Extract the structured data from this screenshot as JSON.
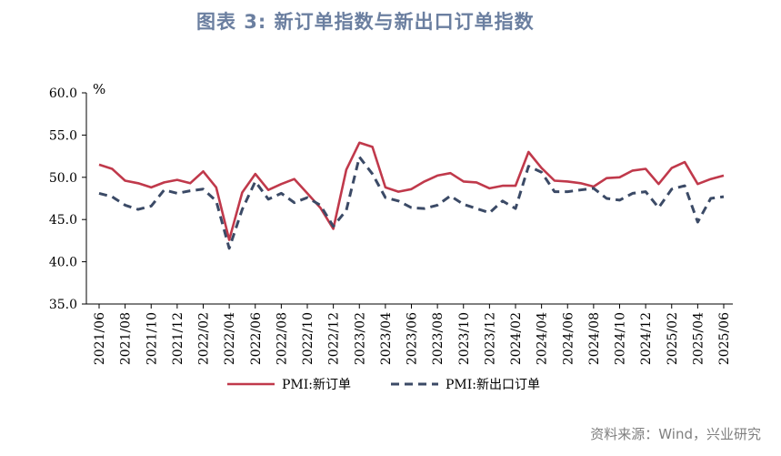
{
  "title": "图表  3:  新订单指数与新出口订单指数",
  "source": "资料来源：Wind，兴业研究",
  "chart_data": {
    "type": "line",
    "unit": "%",
    "ylim": [
      35.0,
      60.0
    ],
    "yticks": [
      "35.0",
      "40.0",
      "45.0",
      "50.0",
      "55.0",
      "60.0"
    ],
    "ytick_values": [
      35,
      40,
      45,
      50,
      55,
      60
    ],
    "x_labels": [
      "2021/06",
      "2021/08",
      "2021/10",
      "2021/12",
      "2022/02",
      "2022/04",
      "2022/06",
      "2022/08",
      "2022/10",
      "2022/12",
      "2023/02",
      "2023/04",
      "2023/06",
      "2023/08",
      "2023/10",
      "2023/12",
      "2024/02",
      "2024/04",
      "2024/06",
      "2024/08",
      "2024/10",
      "2024/12",
      "2025/02",
      "2025/04",
      "2025/06"
    ],
    "x": [
      "2021/06",
      "2021/07",
      "2021/08",
      "2021/09",
      "2021/10",
      "2021/11",
      "2021/12",
      "2022/01",
      "2022/02",
      "2022/03",
      "2022/04",
      "2022/05",
      "2022/06",
      "2022/07",
      "2022/08",
      "2022/09",
      "2022/10",
      "2022/11",
      "2022/12",
      "2023/01",
      "2023/02",
      "2023/03",
      "2023/04",
      "2023/05",
      "2023/06",
      "2023/07",
      "2023/08",
      "2023/09",
      "2023/10",
      "2023/11",
      "2023/12",
      "2024/01",
      "2024/02",
      "2024/03",
      "2024/04",
      "2024/05",
      "2024/06",
      "2024/07",
      "2024/08",
      "2024/09",
      "2024/10",
      "2024/11",
      "2024/12",
      "2025/01",
      "2025/02",
      "2025/03",
      "2025/04",
      "2025/05",
      "2025/06"
    ],
    "series": [
      {
        "name": "PMI:新订单",
        "color": "#c0394b",
        "dash": "solid",
        "values": [
          51.5,
          51.0,
          49.6,
          49.3,
          48.8,
          49.4,
          49.7,
          49.3,
          50.7,
          48.8,
          42.6,
          48.2,
          50.4,
          48.5,
          49.2,
          49.8,
          48.1,
          46.4,
          43.9,
          50.9,
          54.1,
          53.6,
          48.8,
          48.3,
          48.6,
          49.5,
          50.2,
          50.5,
          49.5,
          49.4,
          48.7,
          49.0,
          49.0,
          53.0,
          51.1,
          49.6,
          49.5,
          49.3,
          48.9,
          49.9,
          50.0,
          50.8,
          51.0,
          49.2,
          51.1,
          51.8,
          49.2,
          49.8,
          50.2
        ]
      },
      {
        "name": "PMI:新出口订单",
        "color": "#3b4a66",
        "dash": "dashed",
        "values": [
          48.1,
          47.7,
          46.7,
          46.2,
          46.6,
          48.5,
          48.1,
          48.4,
          48.6,
          47.2,
          41.6,
          46.2,
          49.5,
          47.4,
          48.1,
          47.0,
          47.6,
          46.7,
          44.2,
          46.1,
          52.4,
          50.4,
          47.6,
          47.2,
          46.4,
          46.3,
          46.7,
          47.8,
          46.8,
          46.3,
          45.8,
          47.2,
          46.3,
          51.3,
          50.6,
          48.3,
          48.3,
          48.5,
          48.7,
          47.5,
          47.3,
          48.1,
          48.3,
          46.4,
          48.6,
          49.0,
          44.7,
          47.5,
          47.7
        ]
      }
    ]
  }
}
